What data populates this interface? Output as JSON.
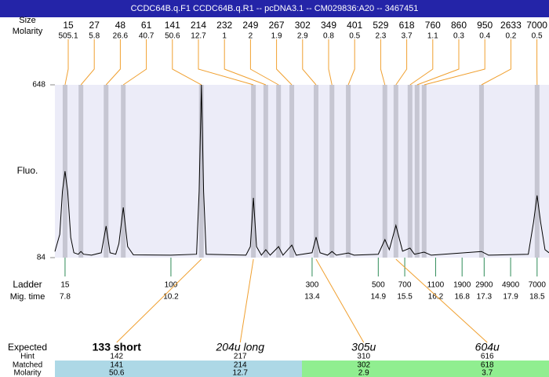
{
  "header": {
    "title": "CCDC64B.q.F1  CCDC64B.q.R1 -- pcDNA3.1 -- CM029836:A20 -- 3467451"
  },
  "chart_data": {
    "type": "electropherogram",
    "ylabel": "Fluo.",
    "ylim": [
      84,
      648
    ],
    "yticks": [
      84,
      648
    ],
    "xlim": [
      7.57,
      18.77
    ],
    "size_label": "Size",
    "molarity_label": "Molarity",
    "peaks": [
      {
        "size": 15,
        "molarity": 505.1,
        "time": 7.8
      },
      {
        "size": 27,
        "molarity": 5.8,
        "time": 8.16
      },
      {
        "size": 48,
        "molarity": 26.6,
        "time": 8.73
      },
      {
        "size": 61,
        "molarity": 40.7,
        "time": 9.12
      },
      {
        "size": 141,
        "molarity": 50.6,
        "time": 10.89
      },
      {
        "size": 214,
        "molarity": 12.7,
        "time": 12.07
      },
      {
        "size": 232,
        "molarity": 1,
        "time": 12.35
      },
      {
        "size": 249,
        "molarity": 2,
        "time": 12.64
      },
      {
        "size": 267,
        "molarity": 1.9,
        "time": 12.94
      },
      {
        "size": 302,
        "molarity": 2.9,
        "time": 13.49
      },
      {
        "size": 349,
        "molarity": 0.8,
        "time": 13.85
      },
      {
        "size": 401,
        "molarity": 0.5,
        "time": 14.22
      },
      {
        "size": 529,
        "molarity": 2.3,
        "time": 15.05
      },
      {
        "size": 618,
        "molarity": 3.7,
        "time": 15.3
      },
      {
        "size": 760,
        "molarity": 1.1,
        "time": 15.62
      },
      {
        "size": 860,
        "molarity": 0.3,
        "time": 15.78
      },
      {
        "size": 950,
        "molarity": 0.4,
        "time": 15.94
      },
      {
        "size": 2633,
        "molarity": 0.2,
        "time": 17.24
      },
      {
        "size": 7000,
        "molarity": 0.5,
        "time": 18.5
      }
    ],
    "x": [
      7.57,
      7.68,
      7.74,
      7.8,
      7.86,
      7.93,
      8.0,
      8.1,
      8.16,
      8.22,
      8.4,
      8.62,
      8.73,
      8.82,
      8.95,
      9.02,
      9.12,
      9.22,
      9.35,
      10.2,
      10.78,
      10.84,
      10.89,
      10.94,
      11.0,
      11.9,
      12.0,
      12.07,
      12.14,
      12.25,
      12.35,
      12.45,
      12.64,
      12.74,
      12.94,
      13.04,
      13.4,
      13.49,
      13.58,
      13.75,
      13.85,
      13.95,
      14.22,
      14.35,
      14.9,
      15.05,
      15.15,
      15.3,
      15.45,
      15.62,
      15.72,
      15.94,
      16.1,
      17.24,
      17.4,
      18.3,
      18.42,
      18.5,
      18.58,
      18.68,
      18.77
    ],
    "series": [
      {
        "color": "#000000",
        "values": [
          104,
          160,
          300,
          366,
          300,
          150,
          100,
          95,
          104,
          95,
          92,
          100,
          187,
          100,
          95,
          130,
          248,
          120,
          93,
          92,
          95,
          300,
          648,
          300,
          95,
          92,
          120,
          279,
          120,
          92,
          110,
          92,
          120,
          92,
          125,
          92,
          100,
          151,
          100,
          92,
          104,
          92,
          99,
          92,
          95,
          143,
          110,
          189,
          105,
          115,
          95,
          102,
          92,
          104,
          92,
          95,
          200,
          287,
          200,
          110,
          100
        ]
      }
    ],
    "ladder_label": "Ladder",
    "time_label": "Mig. time",
    "ladder": [
      {
        "size": 15,
        "time": 7.8
      },
      {
        "size": 100,
        "time": 10.2
      },
      {
        "size": 300,
        "time": 13.4
      },
      {
        "size": 500,
        "time": 14.9
      },
      {
        "size": 700,
        "time": 15.5
      },
      {
        "size": 1100,
        "time": 16.2
      },
      {
        "size": 1900,
        "time": 16.8
      },
      {
        "size": 2900,
        "time": 17.3
      },
      {
        "size": 4900,
        "time": 17.9
      },
      {
        "size": 7000,
        "time": 18.5
      }
    ],
    "table": {
      "labels": [
        "Expected",
        "Hint",
        "Matched",
        "Molarity"
      ],
      "columns": [
        {
          "expected": "133 short",
          "style": "bold",
          "hint": 142,
          "matched": 141,
          "molarity": 50.6,
          "color": "#add8e6"
        },
        {
          "expected": "204u long",
          "style": "italic",
          "hint": 217,
          "matched": 214,
          "molarity": 12.7,
          "color": "#add8e6"
        },
        {
          "expected": "305u",
          "style": "italic",
          "hint": 310,
          "matched": 302,
          "molarity": 2.9,
          "color": "#90ee90"
        },
        {
          "expected": "604u",
          "style": "italic",
          "hint": 616,
          "matched": 618,
          "molarity": 3.7,
          "color": "#90ee90"
        }
      ]
    }
  }
}
